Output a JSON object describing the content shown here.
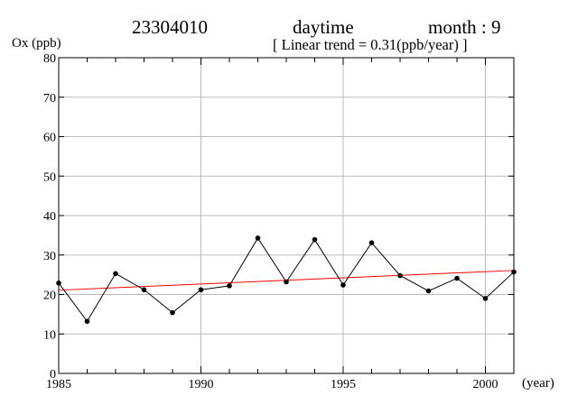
{
  "header": {
    "station": "23304010",
    "period": "daytime",
    "month": "month : 9",
    "trend_note": "[ Linear trend = 0.31(ppb/year) ]"
  },
  "chart_data": {
    "type": "line",
    "title": "",
    "ylabel": "Ox (ppb)",
    "xlabel": "(year)",
    "xlim": [
      1985,
      2001
    ],
    "ylim": [
      0,
      80
    ],
    "x_ticks": [
      1985,
      1990,
      1995,
      2000
    ],
    "y_ticks": [
      0,
      10,
      20,
      30,
      40,
      50,
      60,
      70,
      80
    ],
    "grid": true,
    "colors": {
      "series": "#000000",
      "trend": "#ff0000",
      "grid": "#bbbbbb"
    },
    "series": [
      {
        "x": [
          1985,
          1986,
          1987,
          1988,
          1989,
          1990,
          1991,
          1992,
          1993,
          1994,
          1995,
          1996,
          1997,
          1998,
          1999,
          2000,
          2001
        ],
        "values": [
          22.9,
          13.2,
          25.3,
          21.2,
          15.4,
          21.2,
          22.2,
          34.3,
          23.2,
          33.9,
          22.4,
          33.1,
          24.8,
          20.9,
          24.1,
          19.0,
          25.7
        ]
      }
    ],
    "trend_line": {
      "x": [
        1985,
        2001
      ],
      "values": [
        21.1,
        26.1
      ]
    }
  }
}
